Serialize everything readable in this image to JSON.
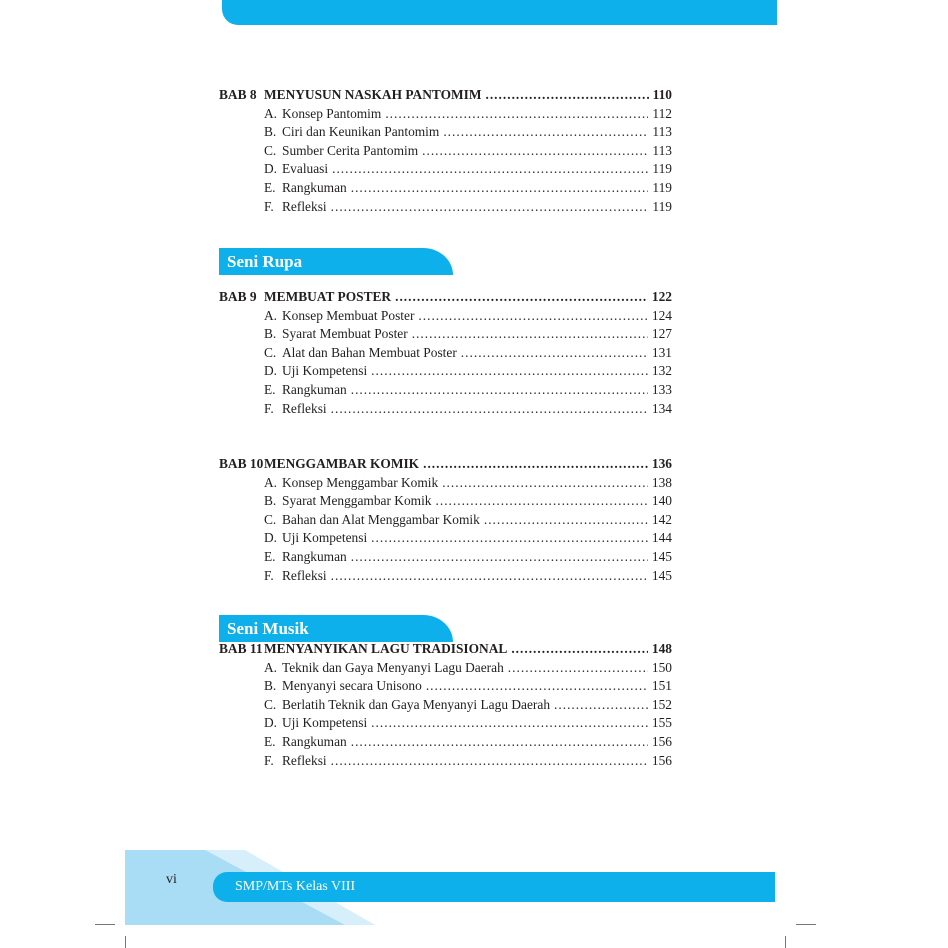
{
  "footer": {
    "page_number": "vi",
    "book_label": "SMP/MTs Kelas VIII"
  },
  "sections": {
    "seni_rupa": "Seni Rupa",
    "seni_musik": "Seni Musik"
  },
  "chapters": [
    {
      "bab": "BAB 8",
      "title": "MENYUSUN NASKAH PANTOMIM",
      "page": "110",
      "items": [
        {
          "letter": "A.",
          "title": "Konsep Pantomim",
          "page": "112"
        },
        {
          "letter": "B.",
          "title": "Ciri dan Keunikan Pantomim",
          "page": "113"
        },
        {
          "letter": "C.",
          "title": "Sumber Cerita Pantomim",
          "page": "113"
        },
        {
          "letter": "D.",
          "title": "Evaluasi",
          "page": "119"
        },
        {
          "letter": "E.",
          "title": "Rangkuman",
          "page": "119"
        },
        {
          "letter": "F.",
          "title": "Refleksi",
          "page": "119"
        }
      ]
    },
    {
      "bab": "BAB 9",
      "title": "MEMBUAT POSTER",
      "page": "122",
      "items": [
        {
          "letter": "A.",
          "title": "Konsep Membuat Poster",
          "page": "124"
        },
        {
          "letter": "B.",
          "title": "Syarat Membuat Poster",
          "page": "127"
        },
        {
          "letter": "C.",
          "title": "Alat dan Bahan Membuat Poster",
          "page": "131"
        },
        {
          "letter": "D.",
          "title": "Uji Kompetensi",
          "page": "132"
        },
        {
          "letter": "E.",
          "title": "Rangkuman",
          "page": "133"
        },
        {
          "letter": "F.",
          "title": "Refleksi",
          "page": "134"
        }
      ]
    },
    {
      "bab": "BAB 10",
      "title": "MENGGAMBAR KOMIK",
      "page": "136",
      "items": [
        {
          "letter": "A.",
          "title": "Konsep Menggambar Komik",
          "page": "138"
        },
        {
          "letter": "B.",
          "title": "Syarat Menggambar Komik",
          "page": "140"
        },
        {
          "letter": "C.",
          "title": "Bahan dan Alat Menggambar Komik",
          "page": "142"
        },
        {
          "letter": "D.",
          "title": "Uji Kompetensi",
          "page": "144"
        },
        {
          "letter": "E.",
          "title": "Rangkuman",
          "page": "145"
        },
        {
          "letter": "F.",
          "title": "Refleksi",
          "page": "145"
        }
      ]
    },
    {
      "bab": "BAB 11",
      "title": "MENYANYIKAN LAGU TRADISIONAL",
      "page": "148",
      "items": [
        {
          "letter": "A.",
          "title": "Teknik dan Gaya Menyanyi Lagu Daerah",
          "page": "150"
        },
        {
          "letter": "B.",
          "title": "Menyanyi secara Unisono",
          "page": "151"
        },
        {
          "letter": "C.",
          "title": "Berlatih Teknik dan Gaya Menyanyi Lagu Daerah",
          "page": "152"
        },
        {
          "letter": "D.",
          "title": "Uji Kompetensi",
          "page": "155"
        },
        {
          "letter": "E.",
          "title": "Rangkuman",
          "page": "156"
        },
        {
          "letter": "F.",
          "title": "Refleksi",
          "page": "156"
        }
      ]
    }
  ]
}
